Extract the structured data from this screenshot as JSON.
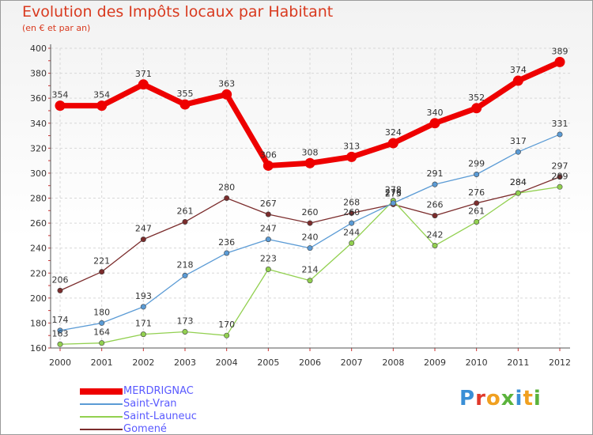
{
  "title": "Evolution des Impôts locaux par Habitant",
  "subtitle": "(en € et par an)",
  "logo": {
    "text": "Proxiti",
    "letter_colors": [
      "#3a8fd6",
      "#e0392b",
      "#f0a020",
      "#5bb33c",
      "#3a8fd6",
      "#f0a020",
      "#5bb33c"
    ]
  },
  "chart_data": {
    "type": "line",
    "title": "Evolution des Impôts locaux par Habitant",
    "subtitle": "(en € et par an)",
    "xlabel": "",
    "ylabel": "",
    "categories": [
      "2000",
      "2001",
      "2002",
      "2003",
      "2004",
      "2005",
      "2006",
      "2007",
      "2008",
      "2009",
      "2010",
      "2011",
      "2012"
    ],
    "ylim": [
      160,
      400
    ],
    "yticks": [
      "160",
      "180",
      "200",
      "220",
      "240",
      "260",
      "280",
      "300",
      "320",
      "340",
      "360",
      "380",
      "400"
    ],
    "grid": true,
    "legend_position": "bottom-left",
    "series": [
      {
        "name": "MERDRIGNAC",
        "color": "#ee0000",
        "values": [
          354,
          354,
          371,
          355,
          363,
          306,
          308,
          313,
          324,
          340,
          352,
          374,
          389
        ]
      },
      {
        "name": "Saint-Vran",
        "color": "#5b9bd5",
        "values": [
          174,
          180,
          193,
          218,
          236,
          247,
          240,
          260,
          276,
          291,
          299,
          317,
          331
        ]
      },
      {
        "name": "Saint-Launeuc",
        "color": "#92d050",
        "values": [
          163,
          164,
          171,
          173,
          170,
          223,
          214,
          244,
          278,
          242,
          261,
          284,
          289
        ]
      },
      {
        "name": "Gomené",
        "color": "#7b2c2c",
        "values": [
          206,
          221,
          247,
          261,
          280,
          267,
          260,
          268,
          275,
          266,
          276,
          284,
          297
        ]
      }
    ]
  }
}
